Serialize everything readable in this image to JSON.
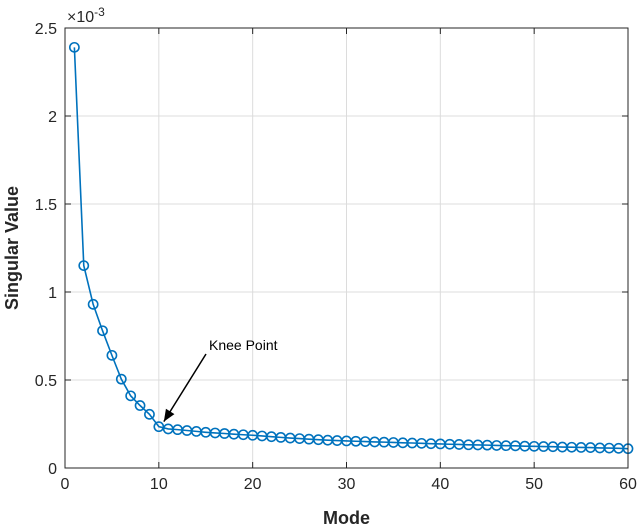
{
  "chart_data": {
    "type": "line",
    "xlabel": "Mode",
    "ylabel": "Singular Value",
    "xlim": [
      0,
      60
    ],
    "ylim": [
      0,
      0.0025
    ],
    "xticks": [
      0,
      10,
      20,
      30,
      40,
      50,
      60
    ],
    "xtick_labels": [
      "0",
      "10",
      "20",
      "30",
      "40",
      "50",
      "60"
    ],
    "yticks": [
      0,
      0.0005,
      0.001,
      0.0015,
      0.002,
      0.0025
    ],
    "ytick_labels": [
      "0",
      "0.5",
      "1",
      "1.5",
      "2",
      "2.5"
    ],
    "y_exponent": {
      "base": "×10",
      "power": "-3"
    },
    "grid": true,
    "marker": "circle",
    "colors": {
      "series": "#0072BD",
      "grid": "#dcdcdc",
      "axis": "#262626",
      "annotation": "#000000"
    },
    "series": [
      {
        "x": [
          1,
          2,
          3,
          4,
          5,
          6,
          7,
          8,
          9,
          10,
          11,
          12,
          13,
          14,
          15,
          16,
          17,
          18,
          19,
          20,
          21,
          22,
          23,
          24,
          25,
          26,
          27,
          28,
          29,
          30,
          31,
          32,
          33,
          34,
          35,
          36,
          37,
          38,
          39,
          40,
          41,
          42,
          43,
          44,
          45,
          46,
          47,
          48,
          49,
          50,
          51,
          52,
          53,
          54,
          55,
          56,
          57,
          58,
          59,
          60
        ],
        "values": [
          0.00239,
          0.00115,
          0.00093,
          0.00078,
          0.00064,
          0.000505,
          0.00041,
          0.000355,
          0.000305,
          0.000235,
          0.000222,
          0.000218,
          0.000213,
          0.000208,
          0.000203,
          0.000199,
          0.000196,
          0.000192,
          0.000189,
          0.000186,
          0.000182,
          0.000178,
          0.000174,
          0.00017,
          0.000167,
          0.000164,
          0.000161,
          0.000158,
          0.000156,
          0.000154,
          0.000152,
          0.00015,
          0.000148,
          0.000147,
          0.000145,
          0.000143,
          0.000142,
          0.00014,
          0.000138,
          0.000137,
          0.000135,
          0.000134,
          0.000132,
          0.000131,
          0.00013,
          0.000128,
          0.000127,
          0.000126,
          0.000124,
          0.000123,
          0.000122,
          0.000121,
          0.000119,
          0.000118,
          0.000117,
          0.000116,
          0.000114,
          0.000113,
          0.000112,
          0.00011
        ]
      }
    ],
    "annotations": [
      {
        "text": "Knee Point",
        "arrow_to": {
          "x": 10,
          "y": 0.000235
        }
      }
    ]
  }
}
